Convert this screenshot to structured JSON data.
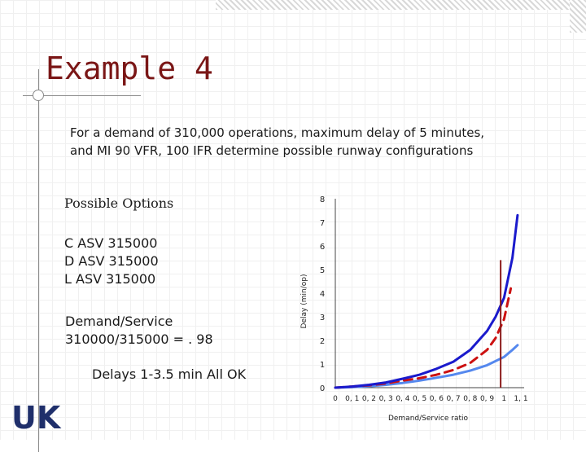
{
  "slide": {
    "title": "Example 4",
    "question_line1": "For a demand of 310,000 operations, maximum delay of 5 minutes,",
    "question_line2": "and MI 90 VFR, 100 IFR determine possible runway configurations",
    "options_title": "Possible Options",
    "options": [
      "C ASV 315000",
      "D ASV 315000",
      "L ASV 315000"
    ],
    "ratio_label": "Demand/Service",
    "ratio_value": "310000/315000 = . 98",
    "delays_text": "Delays 1-3.5 min All OK",
    "logo_text": "UK"
  },
  "colors": {
    "title": "#7a1616",
    "curve_dark_blue": "#1a1acc",
    "curve_red_dashed": "#cc1111",
    "curve_light_blue": "#5588ee",
    "marker_line": "#8b1a1a"
  },
  "chart_data": {
    "type": "line",
    "xlabel": "Demand/Service ratio",
    "ylabel": "Delay (min/op)",
    "x_ticks": [
      "0",
      "0, 1",
      "0, 2",
      "0, 3",
      "0, 4",
      "0, 5",
      "0, 6",
      "0, 7",
      "0, 8",
      "0, 9",
      "1",
      "1, 1"
    ],
    "y_ticks": [
      "0",
      "1",
      "2",
      "3",
      "4",
      "5",
      "6",
      "7",
      "8"
    ],
    "xlim": [
      0,
      1.1
    ],
    "ylim": [
      0,
      8
    ],
    "grid": false,
    "series": [
      {
        "style": "solid",
        "x": [
          0,
          0.1,
          0.2,
          0.3,
          0.4,
          0.5,
          0.6,
          0.7,
          0.8,
          0.9,
          0.95,
          1.0,
          1.05,
          1.08
        ],
        "y": [
          0,
          0.05,
          0.12,
          0.22,
          0.38,
          0.55,
          0.8,
          1.1,
          1.6,
          2.4,
          3.0,
          3.8,
          5.5,
          7.3
        ]
      },
      {
        "style": "dashed",
        "x": [
          0,
          0.1,
          0.2,
          0.3,
          0.4,
          0.5,
          0.6,
          0.7,
          0.8,
          0.9,
          0.95,
          1.0,
          1.04
        ],
        "y": [
          0,
          0.05,
          0.1,
          0.18,
          0.3,
          0.4,
          0.55,
          0.75,
          1.05,
          1.6,
          2.1,
          2.9,
          4.2
        ]
      },
      {
        "style": "solid-light",
        "x": [
          0,
          0.1,
          0.2,
          0.3,
          0.4,
          0.5,
          0.6,
          0.7,
          0.8,
          0.9,
          1.0,
          1.05,
          1.08
        ],
        "y": [
          0,
          0.02,
          0.06,
          0.12,
          0.2,
          0.3,
          0.42,
          0.55,
          0.72,
          0.95,
          1.3,
          1.6,
          1.8
        ]
      }
    ],
    "marker_x": 0.98
  }
}
